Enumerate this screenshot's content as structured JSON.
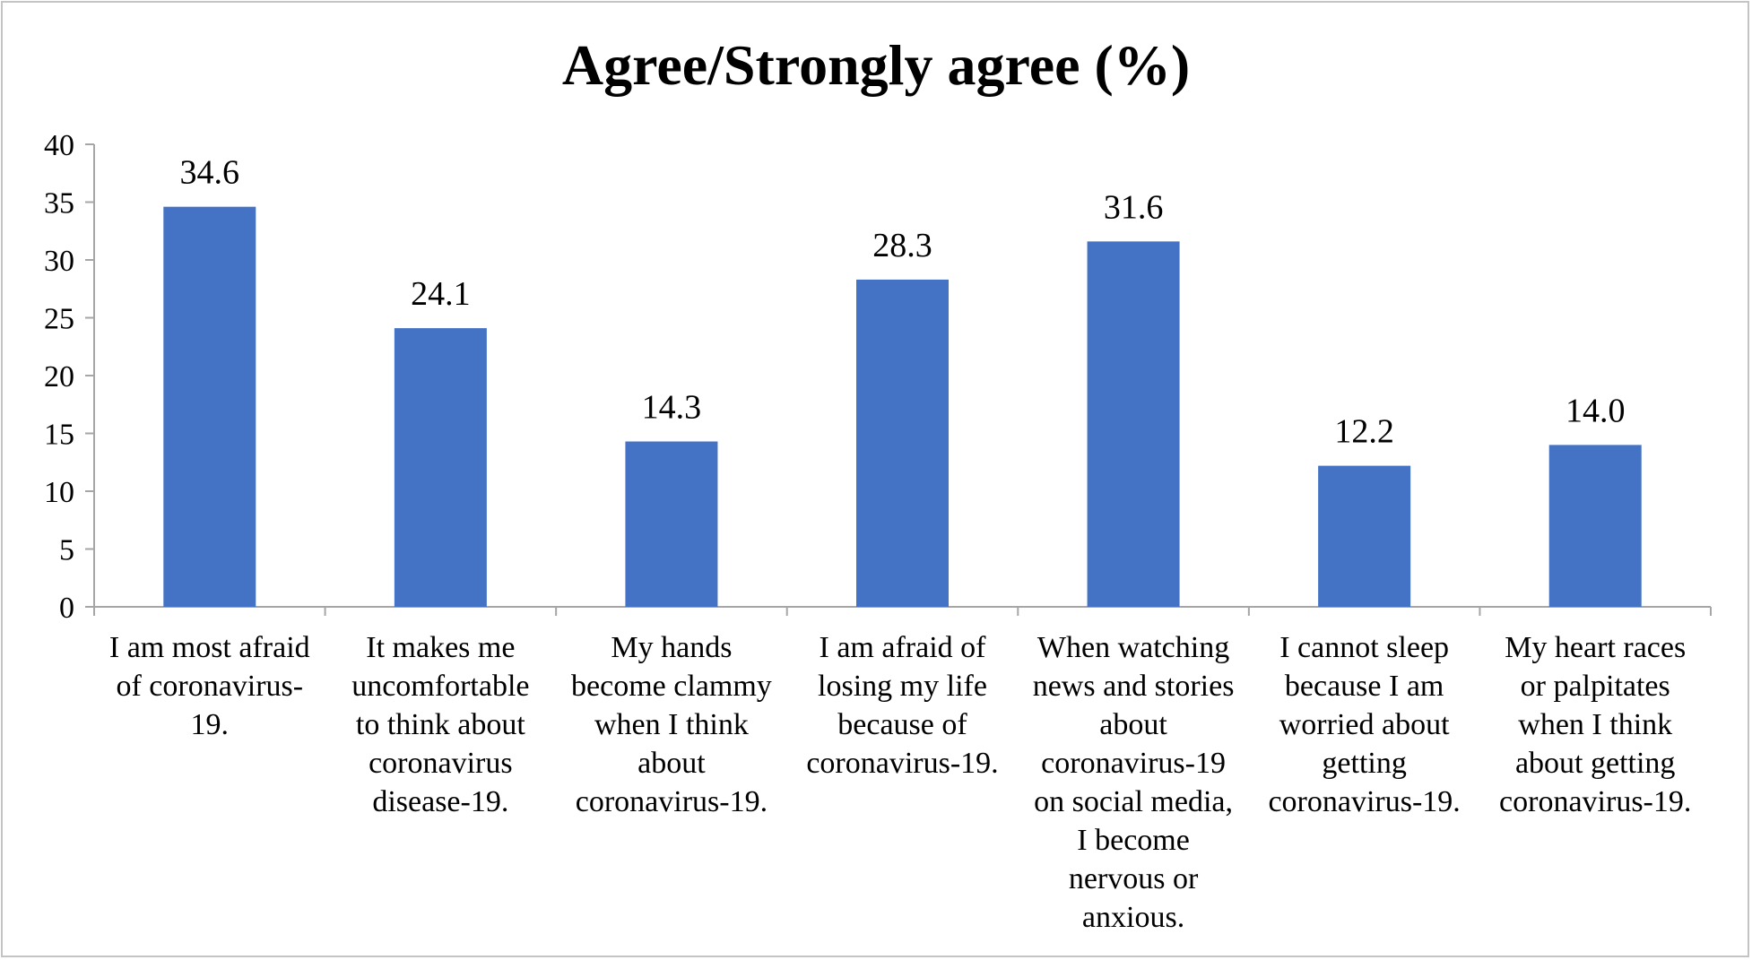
{
  "chart_data": {
    "type": "bar",
    "title": "Agree/Strongly agree (%)",
    "xlabel": "",
    "ylabel": "",
    "ylim": [
      0,
      40
    ],
    "yticks": [
      0,
      5,
      10,
      15,
      20,
      25,
      30,
      35,
      40
    ],
    "grid": false,
    "legend": "none",
    "bar_color": "#4472C4",
    "categories": [
      [
        "I am most afraid",
        "of coronavirus-",
        "19."
      ],
      [
        "It makes me",
        "uncomfortable",
        "to think about",
        "coronavirus",
        "disease-19."
      ],
      [
        "My hands",
        "become clammy",
        "when I think",
        "about",
        "coronavirus-19."
      ],
      [
        "I am afraid of",
        "losing my life",
        "because of",
        "coronavirus-19."
      ],
      [
        "When watching",
        "news and stories",
        "about",
        "coronavirus-19",
        "on social media,",
        "I become",
        "nervous or",
        "anxious."
      ],
      [
        "I cannot sleep",
        "because I am",
        "worried about",
        "getting",
        "coronavirus-19."
      ],
      [
        "My heart races",
        "or palpitates",
        "when I think",
        "about getting",
        "coronavirus-19."
      ]
    ],
    "values": [
      34.6,
      24.1,
      14.3,
      28.3,
      31.6,
      12.2,
      14.0
    ],
    "data_labels": [
      "34.6",
      "24.1",
      "14.3",
      "28.3",
      "31.6",
      "12.2",
      "14.0"
    ]
  }
}
